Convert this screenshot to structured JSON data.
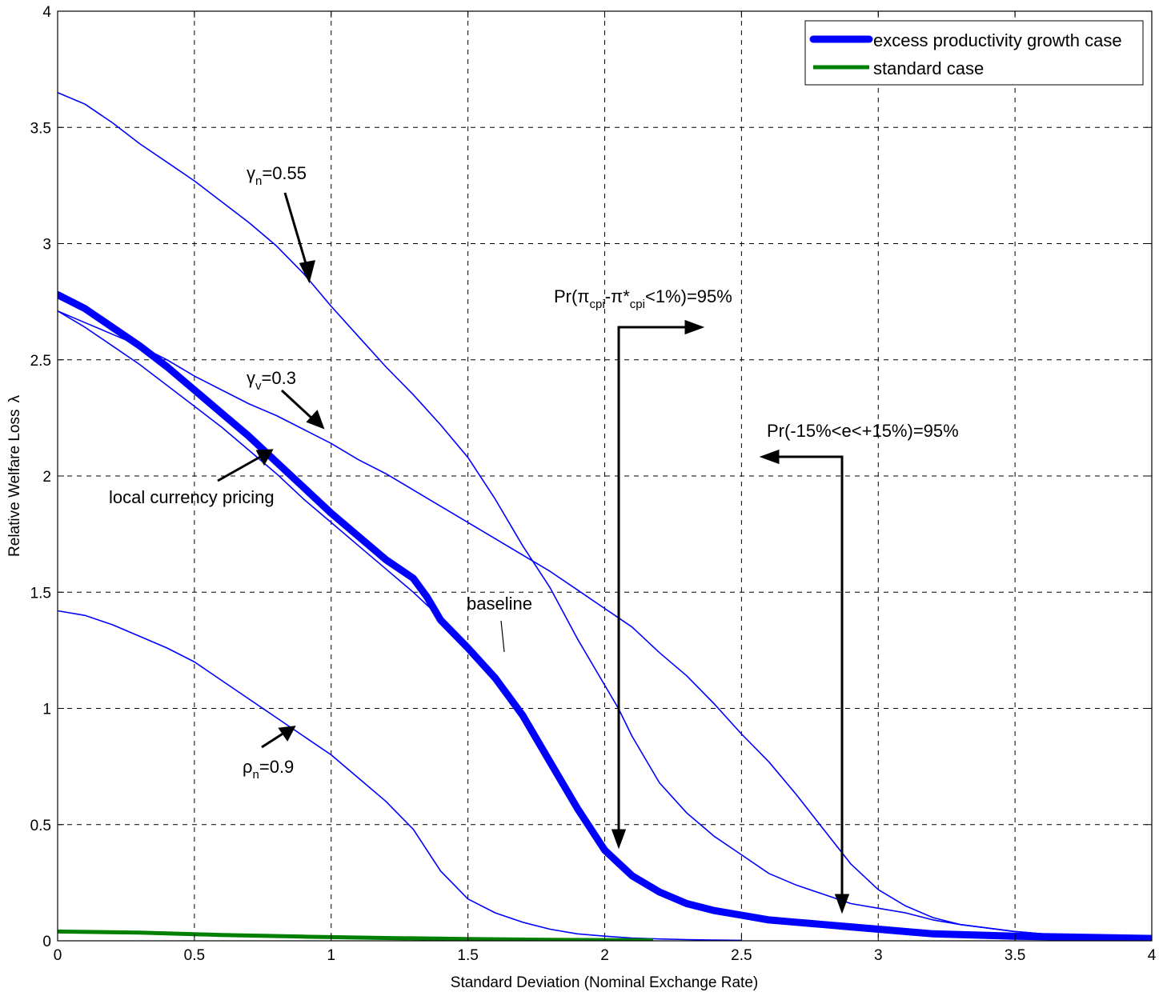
{
  "chart_data": {
    "type": "line",
    "xlabel": "Standard Deviation (Nominal Exchange Rate)",
    "ylabel": "Relative Welfare Loss",
    "ylabel_symbol": "λ",
    "xlim": [
      0,
      4
    ],
    "ylim": [
      0,
      4
    ],
    "x_ticks": [
      "0",
      "0.5",
      "1",
      "1.5",
      "2",
      "2.5",
      "3",
      "3.5",
      "4"
    ],
    "y_ticks": [
      "0",
      "0.5",
      "1",
      "1.5",
      "2",
      "2.5",
      "3",
      "3.5",
      "4"
    ],
    "grid": true,
    "legend_position": "top-right",
    "legend": [
      {
        "label": "excess productivity growth case",
        "color": "#0000ff"
      },
      {
        "label": "standard case",
        "color": "#008000"
      }
    ],
    "series": [
      {
        "key": "gamma_n",
        "color": "#0000ff",
        "width": "thin",
        "x": [
          0,
          0.1,
          0.2,
          0.3,
          0.4,
          0.5,
          0.6,
          0.7,
          0.8,
          0.9,
          1.0,
          1.1,
          1.2,
          1.3,
          1.4,
          1.5,
          1.6,
          1.7,
          1.8,
          1.9,
          2.0,
          2.05,
          2.1,
          2.2,
          2.3,
          2.4,
          2.5,
          2.6,
          2.7,
          2.8,
          2.9,
          3.0,
          3.1,
          3.2,
          3.3,
          3.5,
          3.7,
          4.0
        ],
        "y": [
          3.65,
          3.6,
          3.52,
          3.43,
          3.35,
          3.27,
          3.18,
          3.09,
          2.99,
          2.87,
          2.73,
          2.6,
          2.47,
          2.35,
          2.22,
          2.08,
          1.9,
          1.7,
          1.52,
          1.3,
          1.1,
          1.0,
          0.88,
          0.68,
          0.55,
          0.45,
          0.37,
          0.29,
          0.24,
          0.2,
          0.16,
          0.14,
          0.12,
          0.09,
          0.07,
          0.04,
          0.02,
          0.01
        ]
      },
      {
        "key": "gamma_v",
        "color": "#0000ff",
        "width": "thin",
        "x": [
          0,
          0.1,
          0.2,
          0.3,
          0.4,
          0.5,
          0.6,
          0.7,
          0.8,
          0.9,
          1.0,
          1.1,
          1.2,
          1.3,
          1.4,
          1.5,
          1.6,
          1.7,
          1.8,
          1.9,
          2.0,
          2.1,
          2.2,
          2.3,
          2.4,
          2.5,
          2.6,
          2.7,
          2.8,
          2.9,
          3.0,
          3.1,
          3.2,
          3.3,
          3.5,
          3.7,
          4.0
        ],
        "y": [
          2.71,
          2.66,
          2.61,
          2.56,
          2.5,
          2.43,
          2.37,
          2.31,
          2.26,
          2.2,
          2.14,
          2.07,
          2.01,
          1.94,
          1.87,
          1.8,
          1.73,
          1.66,
          1.59,
          1.51,
          1.43,
          1.35,
          1.24,
          1.14,
          1.02,
          0.89,
          0.77,
          0.63,
          0.48,
          0.33,
          0.22,
          0.15,
          0.1,
          0.07,
          0.04,
          0.02,
          0.01
        ]
      },
      {
        "key": "lcp",
        "color": "#0000ff",
        "width": "thin",
        "x": [
          0,
          0.1,
          0.2,
          0.3,
          0.4,
          0.5,
          0.6,
          0.7,
          0.8,
          0.9,
          1.0,
          1.1,
          1.2,
          1.3,
          1.4,
          1.5,
          1.6,
          1.7,
          1.8,
          1.9,
          2.0,
          2.1,
          2.2,
          2.3,
          2.4,
          2.5,
          2.6,
          2.7,
          2.8,
          2.9,
          3.0,
          3.2,
          3.5,
          4.0
        ],
        "y": [
          2.71,
          2.64,
          2.56,
          2.48,
          2.39,
          2.3,
          2.21,
          2.11,
          2.01,
          1.9,
          1.8,
          1.7,
          1.6,
          1.5,
          1.39,
          1.27,
          1.14,
          0.98,
          0.79,
          0.58,
          0.4,
          0.27,
          0.2,
          0.15,
          0.12,
          0.1,
          0.09,
          0.07,
          0.06,
          0.05,
          0.04,
          0.03,
          0.02,
          0.01
        ]
      },
      {
        "key": "baseline",
        "color": "#0000ff",
        "width": "thick",
        "x": [
          0,
          0.1,
          0.2,
          0.3,
          0.4,
          0.5,
          0.6,
          0.7,
          0.8,
          0.9,
          1.0,
          1.1,
          1.2,
          1.3,
          1.35,
          1.4,
          1.5,
          1.6,
          1.7,
          1.8,
          1.9,
          2.0,
          2.1,
          2.2,
          2.3,
          2.4,
          2.5,
          2.6,
          2.7,
          2.8,
          2.9,
          3.0,
          3.2,
          3.5,
          4.0
        ],
        "y": [
          2.78,
          2.72,
          2.64,
          2.56,
          2.47,
          2.37,
          2.27,
          2.17,
          2.06,
          1.95,
          1.84,
          1.74,
          1.64,
          1.56,
          1.48,
          1.38,
          1.26,
          1.13,
          0.97,
          0.77,
          0.57,
          0.39,
          0.28,
          0.21,
          0.16,
          0.13,
          0.11,
          0.09,
          0.08,
          0.07,
          0.06,
          0.05,
          0.03,
          0.02,
          0.01
        ]
      },
      {
        "key": "rho_n",
        "color": "#0000ff",
        "width": "thin",
        "x": [
          0,
          0.1,
          0.2,
          0.3,
          0.4,
          0.5,
          0.6,
          0.7,
          0.8,
          0.9,
          1.0,
          1.1,
          1.2,
          1.3,
          1.4,
          1.5,
          1.6,
          1.7,
          1.8,
          1.9,
          2.0,
          2.1,
          2.2,
          2.3,
          2.4,
          2.5
        ],
        "y": [
          1.42,
          1.4,
          1.36,
          1.31,
          1.26,
          1.2,
          1.12,
          1.04,
          0.96,
          0.88,
          0.8,
          0.7,
          0.6,
          0.48,
          0.3,
          0.18,
          0.12,
          0.08,
          0.05,
          0.03,
          0.02,
          0.012,
          0.008,
          0.005,
          0.003,
          0.002
        ]
      },
      {
        "key": "standard",
        "color": "#008000",
        "width": "medium",
        "x": [
          0,
          0.3,
          0.6,
          0.9,
          1.2,
          1.5,
          1.8,
          2.17
        ],
        "y": [
          0.04,
          0.035,
          0.025,
          0.018,
          0.012,
          0.008,
          0.004,
          0.002
        ]
      }
    ],
    "annotations": [
      {
        "key": "gamma_n",
        "base": "γ",
        "sub": "n",
        "rest": "=0.55"
      },
      {
        "key": "gamma_v",
        "base": "γ",
        "sub": "v",
        "rest": "=0.3"
      },
      {
        "key": "lcp",
        "text": "local currency pricing"
      },
      {
        "key": "baseline",
        "text": "baseline"
      },
      {
        "key": "rho_n",
        "base": "ρ",
        "sub": "n",
        "rest": "=0.9"
      },
      {
        "key": "cpi",
        "p1": "Pr(π",
        "s1": "cpi",
        "p2": "-π*",
        "s2": "cpi",
        "p3": "<1%)=95%"
      },
      {
        "key": "exch",
        "text": "Pr(-15%<e<+15%)=95%"
      }
    ]
  }
}
